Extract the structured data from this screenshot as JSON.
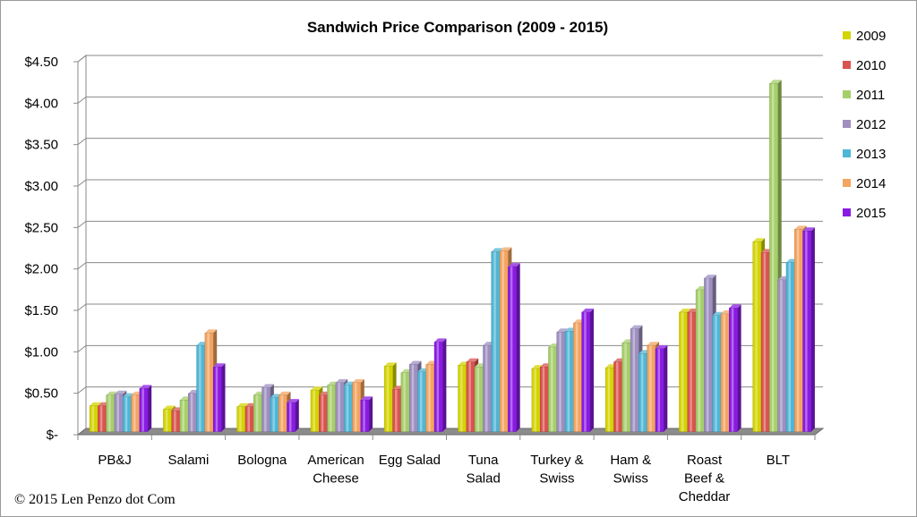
{
  "chart_data": {
    "type": "bar",
    "title": "Sandwich Price Comparison (2009 - 2015)",
    "categories": [
      "PB&J",
      "Salami",
      "Bologna",
      "American Cheese",
      "Egg Salad",
      "Tuna Salad",
      "Turkey & Swiss",
      "Ham & Swiss",
      "Roast Beef & Cheddar",
      "BLT"
    ],
    "category_lines": [
      [
        "PB&J"
      ],
      [
        "Salami"
      ],
      [
        "Bologna"
      ],
      [
        "American",
        "Cheese"
      ],
      [
        "Egg Salad"
      ],
      [
        "Tuna",
        "Salad"
      ],
      [
        "Turkey &",
        "Swiss"
      ],
      [
        "Ham &",
        "Swiss"
      ],
      [
        "Roast",
        "Beef &",
        "Cheddar"
      ],
      [
        "BLT"
      ]
    ],
    "series": [
      {
        "name": "2009",
        "color": "#d4d400",
        "values": [
          0.31,
          0.27,
          0.3,
          0.5,
          0.79,
          0.8,
          0.76,
          0.77,
          1.44,
          2.29
        ]
      },
      {
        "name": "2010",
        "color": "#d9534f",
        "values": [
          0.31,
          0.25,
          0.3,
          0.44,
          0.51,
          0.84,
          0.78,
          0.84,
          1.44,
          2.16
        ]
      },
      {
        "name": "2011",
        "color": "#a6cf6a",
        "values": [
          0.44,
          0.38,
          0.44,
          0.56,
          0.71,
          0.78,
          1.02,
          1.07,
          1.71,
          4.2
        ]
      },
      {
        "name": "2012",
        "color": "#9e8fc0",
        "values": [
          0.45,
          0.46,
          0.53,
          0.59,
          0.81,
          1.04,
          1.2,
          1.24,
          1.85,
          1.83
        ]
      },
      {
        "name": "2013",
        "color": "#4fb6d6",
        "values": [
          0.42,
          1.04,
          0.41,
          0.56,
          0.72,
          2.17,
          1.21,
          0.94,
          1.4,
          2.04
        ]
      },
      {
        "name": "2014",
        "color": "#f4a460",
        "values": [
          0.44,
          1.19,
          0.44,
          0.59,
          0.81,
          2.18,
          1.31,
          1.04,
          1.42,
          2.44
        ]
      },
      {
        "name": "2015",
        "color": "#8a1be3",
        "values": [
          0.52,
          0.78,
          0.35,
          0.38,
          1.08,
          1.99,
          1.44,
          1.0,
          1.49,
          2.42
        ]
      }
    ],
    "ylim": [
      0,
      4.5
    ],
    "yticks": [
      0,
      0.5,
      1.0,
      1.5,
      2.0,
      2.5,
      3.0,
      3.5,
      4.0,
      4.5
    ],
    "ytick_labels": [
      "$-",
      "$0.50",
      "$1.00",
      "$1.50",
      "$2.00",
      "$2.50",
      "$3.00",
      "$3.50",
      "$4.00",
      "$4.50"
    ],
    "grid": true,
    "legend_position": "right"
  },
  "copyright": "© 2015 Len Penzo dot Com"
}
